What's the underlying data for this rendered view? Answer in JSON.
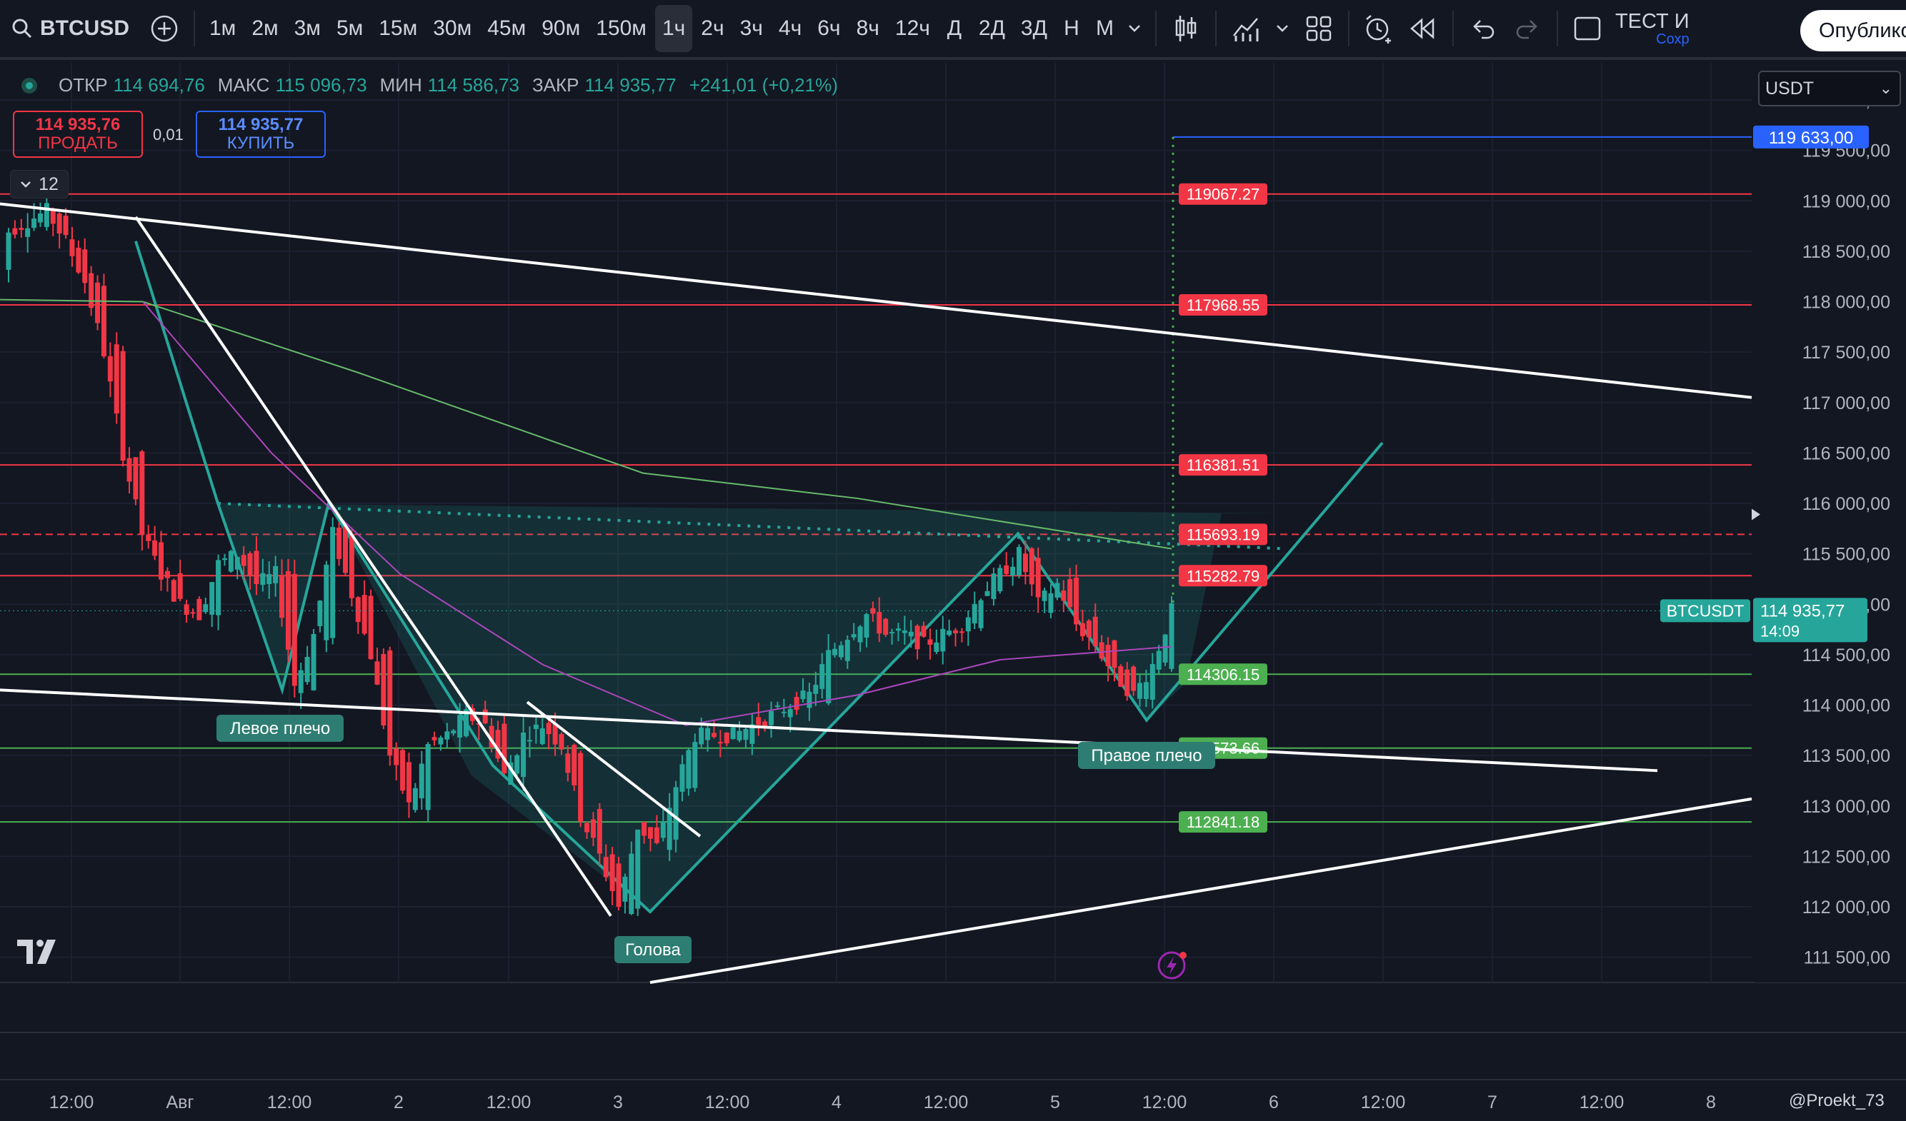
{
  "toolbar": {
    "symbol": "BTCUSD",
    "timeframes": [
      "1м",
      "2м",
      "3м",
      "5м",
      "15м",
      "30м",
      "45м",
      "90м",
      "150м",
      "1ч",
      "2ч",
      "3ч",
      "4ч",
      "6ч",
      "8ч",
      "12ч",
      "Д",
      "2Д",
      "3Д",
      "Н",
      "М"
    ],
    "active_timeframe": "1ч",
    "save_name": "ТЕСТ И",
    "save_status": "Сохр",
    "publish_label": "Опублико"
  },
  "legend": {
    "open_label": "ОТКР",
    "open": "114 694,76",
    "high_label": "МАКС",
    "high": "115 096,73",
    "low_label": "МИН",
    "low": "114 586,73",
    "close_label": "ЗАКР",
    "close": "114 935,77",
    "change": "+241,01 (+0,21%)"
  },
  "trade": {
    "sell_price": "114 935,76",
    "sell_label": "ПРОДАТЬ",
    "buy_price": "114 935,77",
    "buy_label": "КУПИТЬ",
    "spread": "0,01"
  },
  "collapse": {
    "count": "12"
  },
  "currency": {
    "selected": "USDT"
  },
  "price_axis": {
    "ticks": [
      "120 000,00",
      "119 500,00",
      "119 000,00",
      "118 500,00",
      "118 000,00",
      "117 500,00",
      "117 000,00",
      "116 500,00",
      "116 000,00",
      "115 500,00",
      "115 000,00",
      "114 500,00",
      "114 000,00",
      "113 500,00",
      "113 000,00",
      "112 500,00",
      "112 000,00",
      "111 500,00"
    ],
    "current_symbol": "BTCUSDT",
    "current_price": "114 935,77",
    "countdown": "14:09",
    "target_price": "119 633,00"
  },
  "time_axis": {
    "ticks": [
      "12:00",
      "Авг",
      "12:00",
      "2",
      "12:00",
      "3",
      "12:00",
      "4",
      "12:00",
      "5",
      "12:00",
      "6",
      "12:00",
      "7",
      "12:00",
      "8"
    ]
  },
  "levels": {
    "resistance": [
      "119067.27",
      "117968.55",
      "116381.51",
      "115693.19",
      "115282.79"
    ],
    "support": [
      "114306.15",
      "113573.66",
      "112841.18"
    ]
  },
  "pattern_labels": {
    "left_shoulder": "Левое плечо",
    "head": "Голова",
    "right_shoulder": "Правое плечо"
  },
  "watermark": "@Proekt_73",
  "colors": {
    "background": "#131722",
    "up": "#26a69a",
    "down": "#f23645",
    "resistance": "#f23645",
    "support": "#4caf50",
    "target": "#2962ff"
  },
  "chart_data": {
    "type": "candlestick",
    "symbol": "BTCUSD",
    "interval": "1ч",
    "ylim": [
      111500,
      120000
    ],
    "close_trajectory": [
      118700,
      118800,
      118900,
      118600,
      118200,
      117500,
      116500,
      115700,
      115300,
      115000,
      114900,
      115400,
      115500,
      115200,
      115300,
      114200,
      114700,
      115700,
      115100,
      114500,
      113500,
      113000,
      113600,
      113700,
      113900,
      113800,
      113300,
      113700,
      113800,
      113600,
      112900,
      112500,
      112000,
      112800,
      112600,
      113200,
      113700,
      113700,
      113700,
      113800,
      113900,
      114000,
      114100,
      114500,
      114700,
      114900,
      114700,
      114700,
      114600,
      114700,
      114800,
      115100,
      115300,
      115500,
      115000,
      115200,
      114800,
      114600,
      114300,
      114100,
      114400,
      114935.77
    ],
    "indicators": [
      "MA (purple)",
      "MA (green)"
    ]
  }
}
